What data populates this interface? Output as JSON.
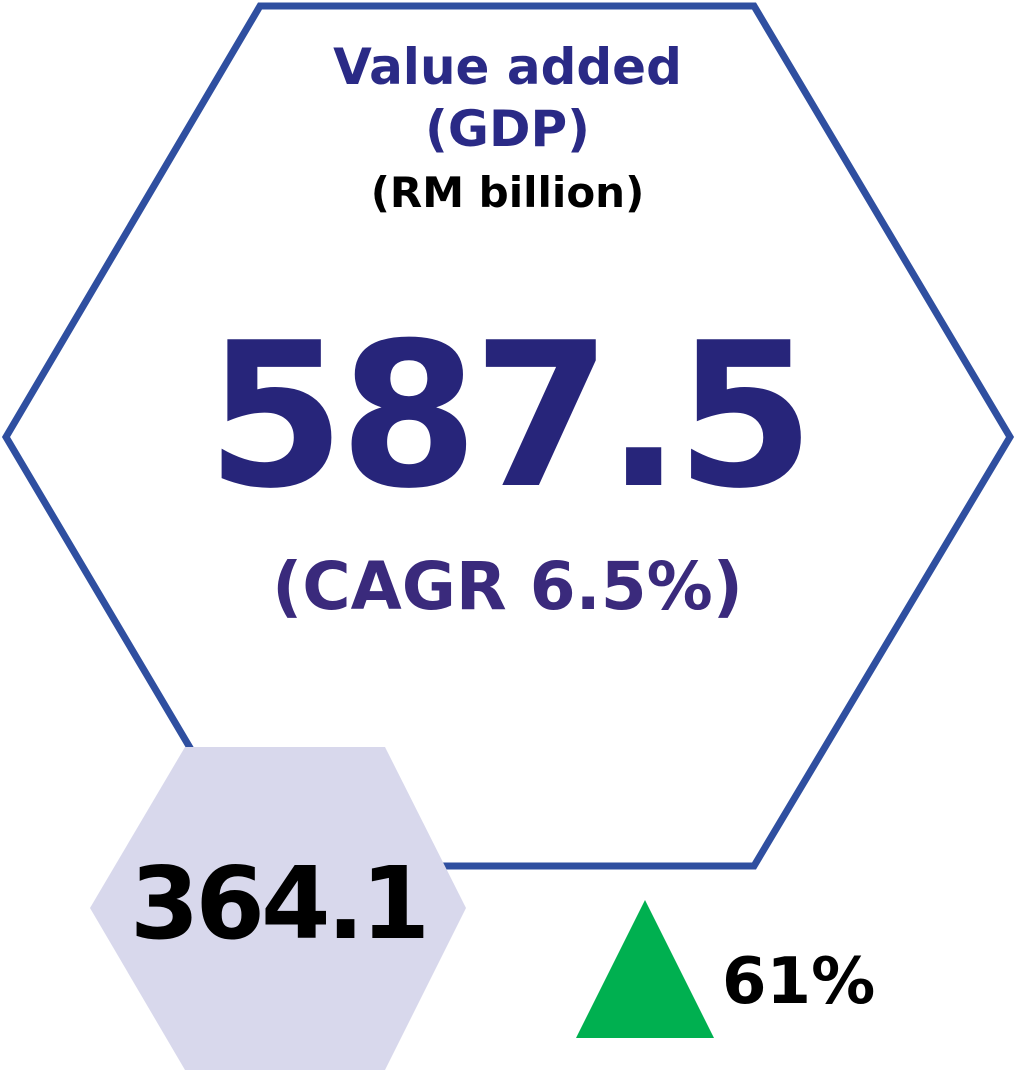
{
  "title_line1": "Value added",
  "title_line2": "(GDP)",
  "unit": "(RM billion)",
  "value": "587.5",
  "cagr": "(CAGR 6.5%)",
  "previous_value": "364.1",
  "growth": "61%",
  "growth_direction": "up",
  "colors": {
    "outline": "#2f4fa0",
    "main_text": "#27257a",
    "small_hex_fill": "#d8d8ec",
    "arrow": "#00b050"
  }
}
